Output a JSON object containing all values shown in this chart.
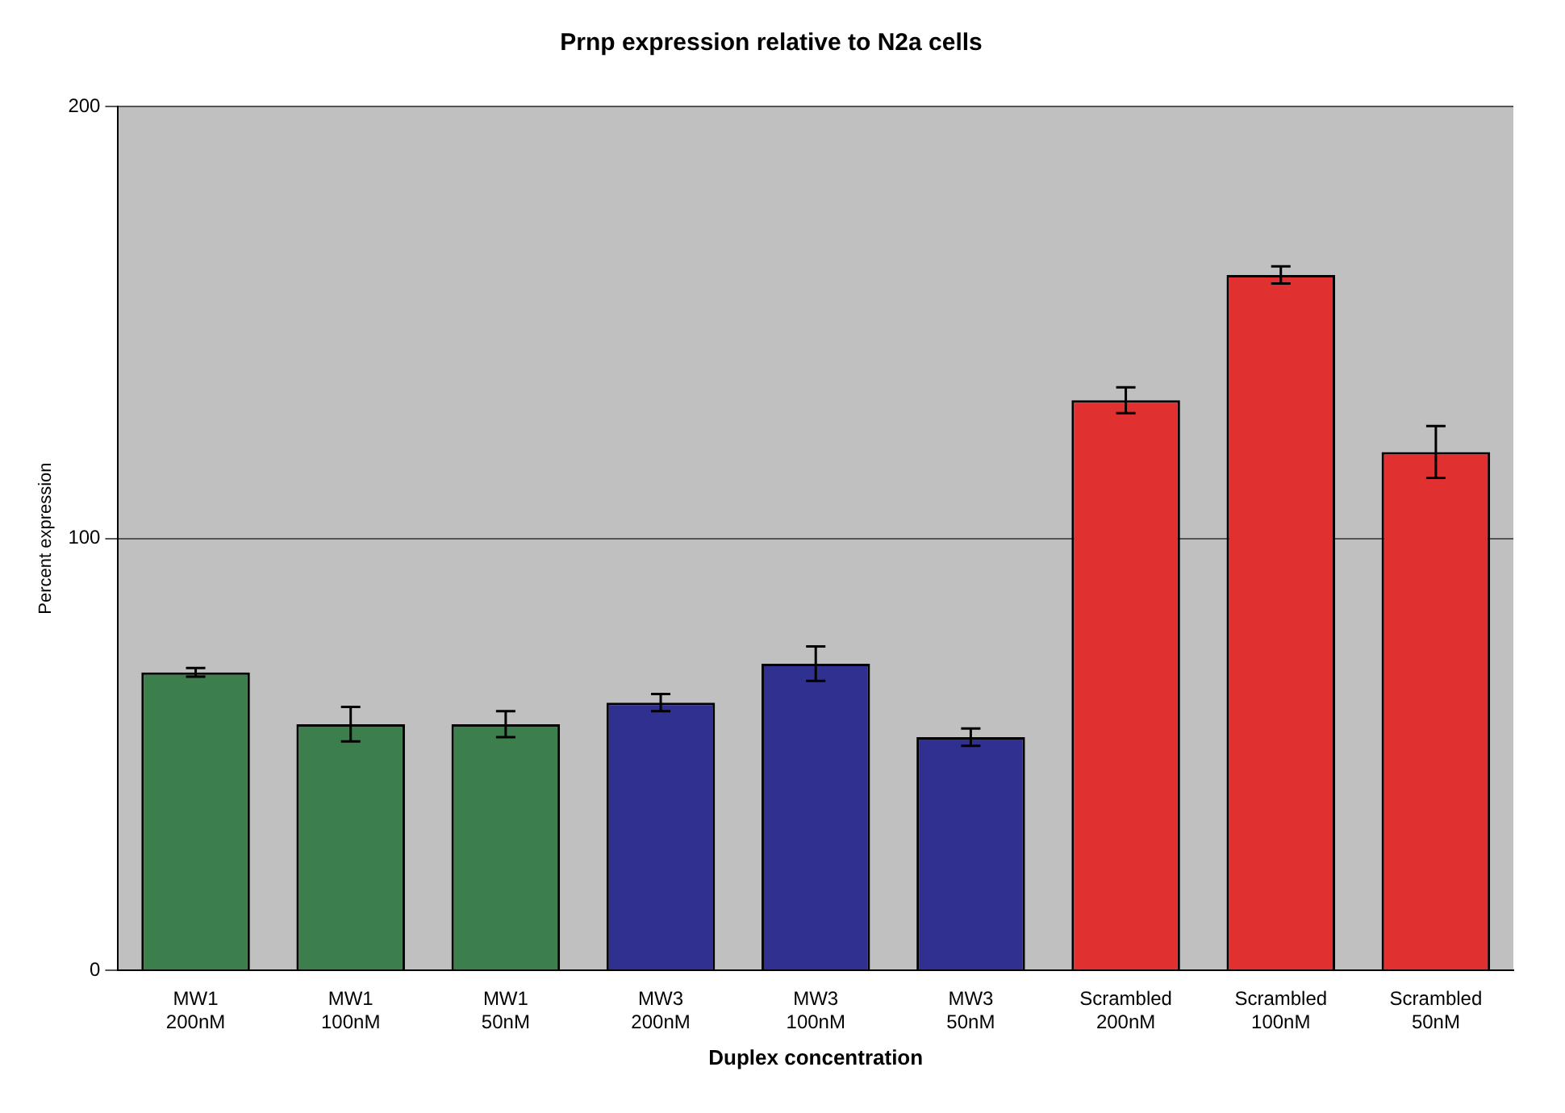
{
  "chart_data": {
    "type": "bar",
    "title": "Prnp expression relative to N2a cells",
    "xlabel": "Duplex concentration",
    "ylabel": "Percent expression",
    "categories": [
      "MW1 200nM",
      "MW1 100nM",
      "MW1 50nM",
      "MW3 200nM",
      "MW3 100nM",
      "MW3 50nM",
      "Scrambled 200nM",
      "Scrambled 100nM",
      "Scrambled 50nM"
    ],
    "values": [
      69,
      57,
      57,
      62,
      71,
      54,
      132,
      161,
      120
    ],
    "errors": [
      1,
      4,
      3,
      2,
      4,
      2,
      3,
      2,
      6
    ],
    "colors": [
      "#3c7f4c",
      "#3c7f4c",
      "#3c7f4c",
      "#303090",
      "#303090",
      "#303090",
      "#e03030",
      "#e03030",
      "#e03030"
    ],
    "ylim": [
      0,
      200
    ],
    "yticks": [
      0,
      100,
      200
    ],
    "grid": "y",
    "legend": false
  }
}
